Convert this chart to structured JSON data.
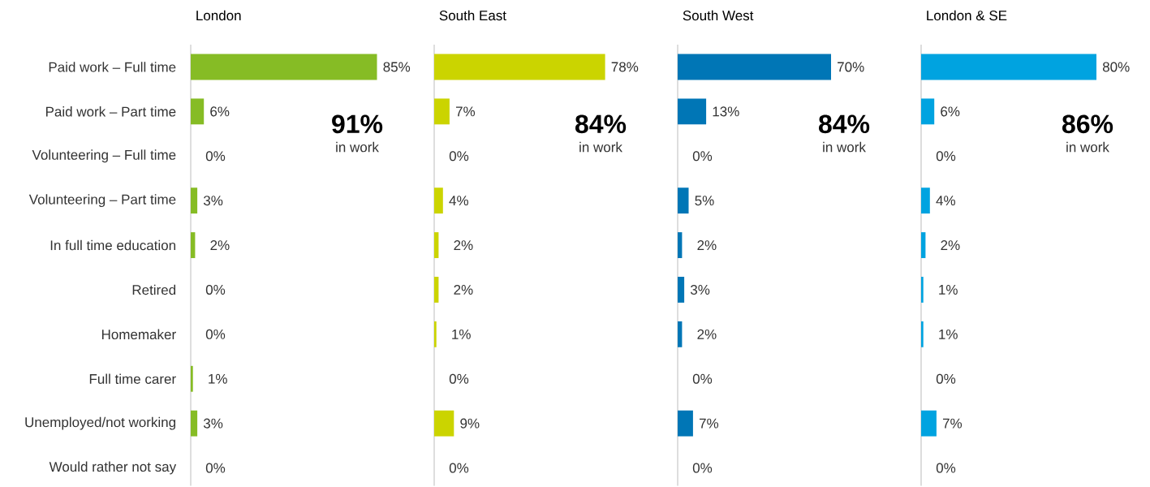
{
  "chart_data": [
    {
      "type": "bar",
      "orientation": "horizontal",
      "title": "London",
      "categories": [
        "Paid work – Full time",
        "Paid work – Part time",
        "Volunteering – Full time",
        "Volunteering – Part time",
        "In full time education",
        "Retired",
        "Homemaker",
        "Full time carer",
        "Unemployed/not working",
        "Would rather not say"
      ],
      "values": [
        85,
        6,
        0,
        3,
        2,
        0,
        0,
        1,
        3,
        0
      ],
      "value_labels": [
        "85%",
        "6%",
        "0%",
        "3%",
        "2%",
        "0%",
        "0%",
        "1%",
        "3%",
        "0%"
      ],
      "color": "#86bc25",
      "tick_labels": "y",
      "annotations": [
        "91%",
        "in work"
      ]
    },
    {
      "type": "bar",
      "orientation": "horizontal",
      "title": "South East",
      "categories": [
        null,
        null,
        null,
        null,
        null,
        null,
        null,
        null,
        null,
        null
      ],
      "values": [
        78,
        7,
        0,
        4,
        2,
        2,
        1,
        0,
        9,
        0
      ],
      "value_labels": [
        "78%",
        "7%",
        "0%",
        "4%",
        "2%",
        "2%",
        "1%",
        "0%",
        "9%",
        "0%"
      ],
      "color": "#cbd400",
      "tick_labels": false,
      "annotations": [
        "84%",
        "in work"
      ]
    },
    {
      "type": "bar",
      "orientation": "horizontal",
      "title": "South West",
      "categories": [
        null,
        null,
        null,
        null,
        null,
        null,
        null,
        null,
        null,
        null
      ],
      "values": [
        70,
        13,
        0,
        5,
        2,
        3,
        2,
        0,
        7,
        0
      ],
      "value_labels": [
        "70%",
        "13%",
        "0%",
        "5%",
        "2%",
        "3%",
        "2%",
        "0%",
        "7%",
        "0%"
      ],
      "color": "#0076b6",
      "tick_labels": false,
      "annotations": [
        "84%",
        "in work"
      ]
    },
    {
      "type": "bar",
      "orientation": "horizontal",
      "title": "London & SE",
      "categories": [
        null,
        null,
        null,
        null,
        null,
        null,
        null,
        null,
        null,
        null
      ],
      "values": [
        80,
        6,
        0,
        4,
        2,
        1,
        1,
        0,
        7,
        0
      ],
      "value_labels": [
        "80%",
        "6%",
        "0%",
        "4%",
        "2%",
        "1%",
        "1%",
        "0%",
        "7%",
        "0%"
      ],
      "color": "#00a3e0",
      "tick_labels": false,
      "annotations": [
        "86%",
        "in work"
      ]
    }
  ]
}
